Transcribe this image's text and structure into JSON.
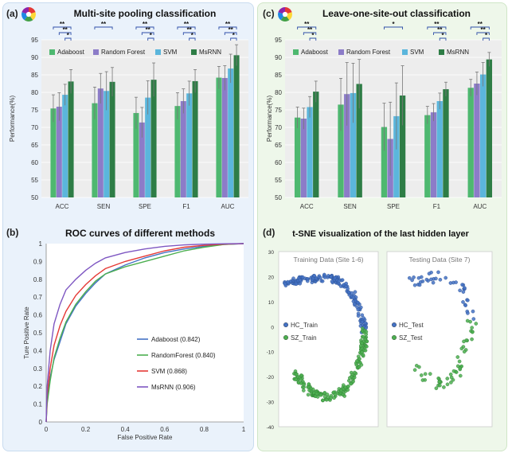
{
  "colors": {
    "adaboost": "#4EB870",
    "rf": "#8C7CC8",
    "svm": "#5BB6DC",
    "msrnn": "#2E7D46",
    "roc_adaboost": "#4472C4",
    "roc_rf": "#4CAF50",
    "roc_svm": "#E53935",
    "roc_msrnn": "#7E57C2",
    "left_bg": "#EAF2FB",
    "right_bg": "#EEF7EA",
    "plot_bg": "#EDEDED",
    "sig": "#2F4FA8"
  },
  "chart_data": [
    {
      "panel": "(a)",
      "type": "bar",
      "title": "Multi-site pooling classification",
      "ylabel": "Performance(%)",
      "ylim": [
        50,
        95
      ],
      "yticks": [
        50,
        55,
        60,
        65,
        70,
        75,
        80,
        85,
        90,
        95
      ],
      "categories": [
        "ACC",
        "SEN",
        "SPE",
        "F1",
        "AUC"
      ],
      "series": [
        {
          "name": "Adaboost",
          "values": [
            75.4,
            76.9,
            74.1,
            76.1,
            84.2
          ],
          "err": [
            3.9,
            4.6,
            4.5,
            3.8,
            3.2
          ]
        },
        {
          "name": "Random Forest",
          "values": [
            75.9,
            81.1,
            71.4,
            77.5,
            84.1
          ],
          "err": [
            4.0,
            4.3,
            4.3,
            3.5,
            3.5
          ]
        },
        {
          "name": "SVM",
          "values": [
            79.3,
            80.4,
            78.5,
            79.7,
            86.8
          ],
          "err": [
            3.0,
            5.5,
            4.8,
            3.5,
            4.1
          ]
        },
        {
          "name": "MsRNN",
          "values": [
            83.1,
            83.0,
            83.6,
            83.2,
            90.6
          ],
          "err": [
            3.4,
            4.1,
            4.8,
            3.3,
            3.0
          ]
        }
      ],
      "significance": [
        {
          "cat": 0,
          "from": 0,
          "to": 3,
          "label": "**"
        },
        {
          "cat": 0,
          "from": 1,
          "to": 3,
          "label": "**"
        },
        {
          "cat": 0,
          "from": 2,
          "to": 3,
          "label": "*"
        },
        {
          "cat": 1,
          "from": 0,
          "to": 3,
          "label": "**"
        },
        {
          "cat": 2,
          "from": 0,
          "to": 3,
          "label": "**"
        },
        {
          "cat": 2,
          "from": 1,
          "to": 3,
          "label": "**"
        },
        {
          "cat": 2,
          "from": 2,
          "to": 3,
          "label": "*"
        },
        {
          "cat": 3,
          "from": 0,
          "to": 3,
          "label": "**"
        },
        {
          "cat": 3,
          "from": 1,
          "to": 3,
          "label": "**"
        },
        {
          "cat": 3,
          "from": 2,
          "to": 3,
          "label": "*"
        },
        {
          "cat": 4,
          "from": 0,
          "to": 3,
          "label": "**"
        },
        {
          "cat": 4,
          "from": 1,
          "to": 3,
          "label": "**"
        },
        {
          "cat": 4,
          "from": 2,
          "to": 3,
          "label": "*"
        }
      ]
    },
    {
      "panel": "(c)",
      "type": "bar",
      "title": "Leave-one-site-out classification",
      "ylabel": "Performance(%)",
      "ylim": [
        50,
        95
      ],
      "yticks": [
        50,
        55,
        60,
        65,
        70,
        75,
        80,
        85,
        90,
        95
      ],
      "categories": [
        "ACC",
        "SEN",
        "SPE",
        "F1",
        "AUC"
      ],
      "series": [
        {
          "name": "Adaboost",
          "values": [
            72.8,
            76.5,
            70.1,
            73.5,
            81.3
          ],
          "err": [
            3.0,
            7.5,
            6.8,
            2.5,
            2.4
          ]
        },
        {
          "name": "Random Forest",
          "values": [
            72.5,
            79.5,
            66.7,
            74.3,
            82.5
          ],
          "err": [
            3.0,
            9.0,
            10.5,
            2.5,
            3.3
          ]
        },
        {
          "name": "SVM",
          "values": [
            75.8,
            79.8,
            73.2,
            77.5,
            85.1
          ],
          "err": [
            3.0,
            8.5,
            9.5,
            2.3,
            3.4
          ]
        },
        {
          "name": "MsRNN",
          "values": [
            80.2,
            82.4,
            79.1,
            80.9,
            89.4
          ],
          "err": [
            3.0,
            7.0,
            8.5,
            2.0,
            2.0
          ]
        }
      ],
      "significance": [
        {
          "cat": 0,
          "from": 0,
          "to": 3,
          "label": "**"
        },
        {
          "cat": 0,
          "from": 1,
          "to": 3,
          "label": "**"
        },
        {
          "cat": 0,
          "from": 2,
          "to": 3,
          "label": "*"
        },
        {
          "cat": 2,
          "from": 0,
          "to": 3,
          "label": "*"
        },
        {
          "cat": 3,
          "from": 0,
          "to": 3,
          "label": "**"
        },
        {
          "cat": 3,
          "from": 1,
          "to": 3,
          "label": "**"
        },
        {
          "cat": 3,
          "from": 2,
          "to": 3,
          "label": "*"
        },
        {
          "cat": 4,
          "from": 0,
          "to": 3,
          "label": "**"
        },
        {
          "cat": 4,
          "from": 1,
          "to": 3,
          "label": "**"
        },
        {
          "cat": 4,
          "from": 2,
          "to": 3,
          "label": "*"
        }
      ]
    },
    {
      "panel": "(b)",
      "type": "line",
      "title": "ROC curves of different methods",
      "xlabel": "False Positive Rate",
      "ylabel": "Ture Positive Rate",
      "xlim": [
        0,
        1
      ],
      "ylim": [
        0,
        1
      ],
      "xticks": [
        "0",
        "0.2",
        "0.4",
        "0.6",
        "0.8",
        "1"
      ],
      "yticks": [
        "0",
        "0.1",
        "0.2",
        "0.3",
        "0.4",
        "0.5",
        "0.6",
        "0.7",
        "0.8",
        "0.9",
        "1"
      ],
      "legend": "bottom-right",
      "series": [
        {
          "name": "Adaboost (0.842)",
          "color_key": "roc_adaboost",
          "x": [
            0,
            0.005,
            0.02,
            0.04,
            0.07,
            0.1,
            0.15,
            0.2,
            0.25,
            0.3,
            0.4,
            0.5,
            0.6,
            0.7,
            0.8,
            0.9,
            1
          ],
          "y": [
            0,
            0.12,
            0.25,
            0.35,
            0.45,
            0.55,
            0.65,
            0.72,
            0.78,
            0.83,
            0.88,
            0.92,
            0.95,
            0.97,
            0.985,
            0.995,
            1
          ]
        },
        {
          "name": "RandomForest (0.840)",
          "color_key": "roc_rf",
          "x": [
            0,
            0.005,
            0.02,
            0.04,
            0.07,
            0.1,
            0.15,
            0.2,
            0.25,
            0.3,
            0.4,
            0.5,
            0.6,
            0.7,
            0.8,
            0.9,
            1
          ],
          "y": [
            0,
            0.1,
            0.23,
            0.36,
            0.47,
            0.56,
            0.66,
            0.73,
            0.79,
            0.83,
            0.87,
            0.9,
            0.93,
            0.96,
            0.98,
            0.995,
            1
          ]
        },
        {
          "name": "SVM (0.868)",
          "color_key": "roc_svm",
          "x": [
            0,
            0.005,
            0.02,
            0.04,
            0.07,
            0.1,
            0.15,
            0.2,
            0.25,
            0.3,
            0.4,
            0.5,
            0.6,
            0.7,
            0.8,
            0.9,
            1
          ],
          "y": [
            0,
            0.15,
            0.3,
            0.43,
            0.54,
            0.62,
            0.71,
            0.77,
            0.82,
            0.86,
            0.9,
            0.93,
            0.96,
            0.98,
            0.99,
            0.997,
            1
          ]
        },
        {
          "name": "MsRNN (0.906)",
          "color_key": "roc_msrnn",
          "x": [
            0,
            0.005,
            0.02,
            0.04,
            0.07,
            0.1,
            0.15,
            0.2,
            0.25,
            0.3,
            0.4,
            0.5,
            0.6,
            0.7,
            0.8,
            0.9,
            1
          ],
          "y": [
            0,
            0.2,
            0.4,
            0.55,
            0.66,
            0.74,
            0.8,
            0.85,
            0.89,
            0.92,
            0.95,
            0.97,
            0.985,
            0.993,
            0.997,
            0.999,
            1
          ]
        }
      ]
    },
    {
      "panel": "(d)",
      "type": "scatter",
      "title": "t-SNE visualization of the last hidden layer",
      "ylim": [
        -40,
        30
      ],
      "yticks": [
        "30",
        "20",
        "10",
        "0",
        "-10",
        "-20",
        "-30",
        "-40"
      ],
      "subplots": [
        {
          "label": "Training Data (Site 1-6)",
          "legend": [
            {
              "name": "HC_Train",
              "color_key": "roc_adaboost"
            },
            {
              "name": "SZ_Train",
              "color_key": "roc_rf"
            }
          ],
          "clusters": [
            {
              "class": "HC",
              "curve": [
                [
                  -22,
                  17.5
                ],
                [
                  -15,
                  18.5
                ],
                [
                  -8,
                  19
                ],
                [
                  -2,
                  19.5
                ],
                [
                  3,
                  19
                ],
                [
                  8,
                  17
                ],
                [
                  12,
                  13
                ],
                [
                  15,
                  8
                ],
                [
                  17,
                  3
                ],
                [
                  18,
                  -1
                ]
              ],
              "spread": 1.4,
              "n": 170
            },
            {
              "class": "SZ",
              "curve": [
                [
                  18,
                  -2
                ],
                [
                  18,
                  -7
                ],
                [
                  16,
                  -12
                ],
                [
                  14,
                  -17
                ],
                [
                  11,
                  -22
                ],
                [
                  7,
                  -26
                ],
                [
                  2,
                  -28
                ],
                [
                  -4,
                  -28
                ],
                [
                  -9,
                  -26
                ],
                [
                  -13,
                  -22
                ],
                [
                  -17,
                  -19
                ]
              ],
              "spread": 1.6,
              "n": 190
            }
          ]
        },
        {
          "label": "Testing Data (Site 7)",
          "legend": [
            {
              "name": "HC_Test",
              "color_key": "roc_adaboost"
            },
            {
              "name": "SZ_Test",
              "color_key": "roc_rf"
            }
          ],
          "clusters": [
            {
              "class": "HC",
              "curve": [
                [
                  -14,
                  17
                ],
                [
                  -8,
                  19
                ],
                [
                  -2,
                  20
                ],
                [
                  4,
                  20
                ],
                [
                  9,
                  18
                ],
                [
                  12,
                  14
                ],
                [
                  14,
                  9
                ],
                [
                  15,
                  4
                ]
              ],
              "spread": 2.0,
              "n": 40
            },
            {
              "class": "SZ",
              "curve": [
                [
                  15,
                  3
                ],
                [
                  15,
                  -3
                ],
                [
                  13,
                  -9
                ],
                [
                  10,
                  -15
                ],
                [
                  6,
                  -20
                ],
                [
                  1,
                  -23
                ],
                [
                  -4,
                  -22
                ],
                [
                  -9,
                  -19
                ],
                [
                  -12,
                  -16
                ]
              ],
              "spread": 2.4,
              "n": 50
            }
          ]
        }
      ]
    }
  ]
}
